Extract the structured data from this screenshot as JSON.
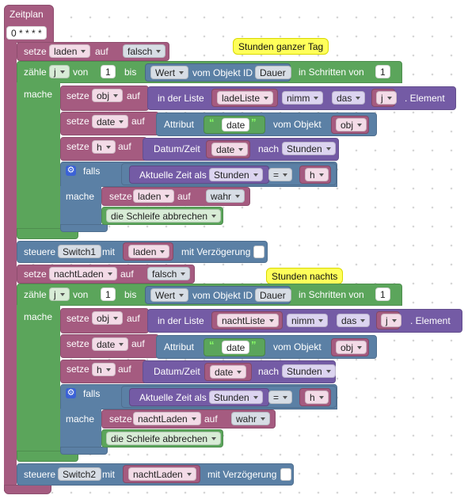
{
  "header": {
    "title": "Zeitplan",
    "cron": "0 * * * *"
  },
  "notes": {
    "day": "Stunden ganzer Tag",
    "night": "Stunden nachts"
  },
  "words": {
    "setze": "setze",
    "auf": "auf",
    "zaehle": "zähle",
    "von": "von",
    "bis": "bis",
    "vom_objekt_id": "vom Objekt ID",
    "in_schritten_von": "in Schritten von",
    "mache": "mache",
    "in_der_liste": "in der Liste",
    "nimm": "nimm",
    "das": "das",
    "element": "Element",
    "attribut": "Attribut",
    "vom_objekt": "vom Objekt",
    "datum_zeit": "Datum/Zeit",
    "nach": "nach",
    "falls": "falls",
    "aktuelle_zeit_als": "Aktuelle Zeit als",
    "eq": "=",
    "schleife_abbrechen": "die Schleife abbrechen",
    "steuere": "steuere",
    "mit": "mit",
    "mit_verzoegerung": "mit Verzögerung",
    "gear": "⚙"
  },
  "section1": {
    "var": "laden",
    "init": "falsch",
    "loop_var": "j",
    "from": "1",
    "wert": "Wert",
    "to_obj": "Dauer",
    "step": "1",
    "obj_var": "obj",
    "list": "ladeListe",
    "date_var": "date",
    "date_attr": "date",
    "h_var": "h",
    "unit": "Stunden",
    "true_val": "wahr",
    "switch": "Switch1"
  },
  "section2": {
    "var": "nachtLaden",
    "init": "falsch",
    "loop_var": "j",
    "from": "1",
    "wert": "Wert",
    "to_obj": "Dauer",
    "step": "1",
    "obj_var": "obj",
    "list": "nachtListe",
    "date_var": "date",
    "date_attr": "date",
    "h_var": "h",
    "unit": "Stunden",
    "true_val": "wahr",
    "switch": "Switch2"
  }
}
